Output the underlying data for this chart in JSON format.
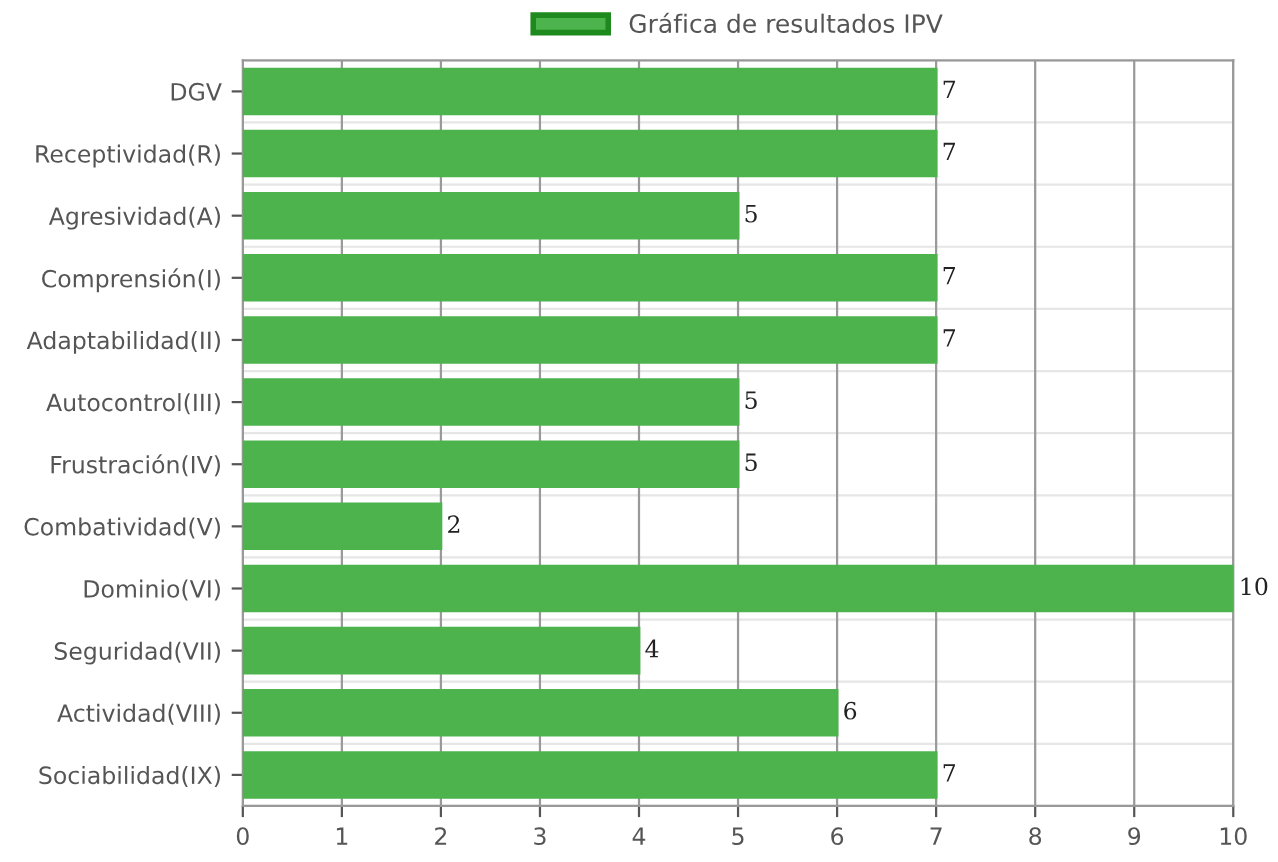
{
  "chart_data": {
    "type": "bar",
    "orientation": "horizontal",
    "categories": [
      "DGV",
      "Receptividad(R)",
      "Agresividad(A)",
      "Comprensión(I)",
      "Adaptabilidad(II)",
      "Autocontrol(III)",
      "Frustración(IV)",
      "Combatividad(V)",
      "Dominio(VI)",
      "Seguridad(VII)",
      "Actividad(VIII)",
      "Sociabilidad(IX)"
    ],
    "series": [
      {
        "name": "Gráfica de resultados IPV",
        "color": "#4db34d",
        "values": [
          7,
          7,
          5,
          7,
          7,
          5,
          5,
          2,
          10,
          4,
          6,
          7
        ]
      }
    ],
    "xlim": [
      0,
      10
    ],
    "xticks": [
      0,
      1,
      2,
      3,
      4,
      5,
      6,
      7,
      8,
      9,
      10
    ],
    "data_labels": true,
    "grid": true,
    "legend": "top"
  }
}
